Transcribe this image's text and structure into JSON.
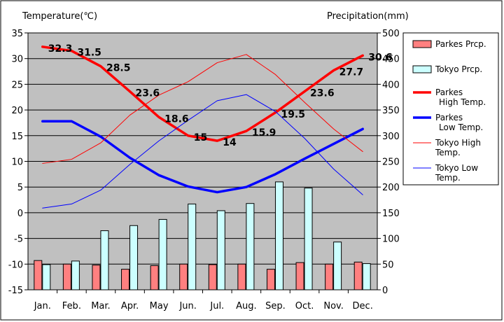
{
  "chart_data": {
    "type": "bar+line",
    "title_left": "Temperature(℃)",
    "title_right": "Precipitation(mm)",
    "categories": [
      "Jan.",
      "Feb.",
      "Mar.",
      "Apr.",
      "May",
      "Jun.",
      "Jul.",
      "Aug.",
      "Sep.",
      "Oct.",
      "Nov.",
      "Dec."
    ],
    "ylim_left": [
      -15,
      35
    ],
    "yticks_left": [
      "35",
      "30",
      "25",
      "20",
      "15",
      "10",
      "5",
      "0",
      "-5",
      "-10",
      "-15"
    ],
    "ylim_right": [
      0,
      500
    ],
    "yticks_right": [
      "500",
      "450",
      "400",
      "350",
      "300",
      "250",
      "200",
      "150",
      "100",
      "50",
      "0"
    ],
    "bar_series": [
      {
        "name": "Parkes Prcp.",
        "color": "#ff8080",
        "values": [
          57,
          50,
          48,
          40,
          47,
          50,
          49,
          50,
          40,
          53,
          50,
          54
        ]
      },
      {
        "name": "Tokyo Prcp.",
        "color": "#ccffff",
        "values": [
          49,
          56,
          115,
          125,
          137,
          167,
          154,
          168,
          210,
          198,
          93,
          51
        ]
      }
    ],
    "line_series": [
      {
        "name": "Parkes High Temp.",
        "legend_lines": [
          "Parkes",
          "High Temp."
        ],
        "color": "#ff0000",
        "width": "thick",
        "values": [
          32.3,
          31.5,
          28.5,
          23.6,
          18.6,
          15,
          14,
          15.9,
          19.5,
          23.6,
          27.7,
          30.6
        ],
        "labels": [
          "32.3",
          "31.5",
          "28.5",
          "23.6",
          "18.6",
          "15",
          "14",
          "15.9",
          "19.5",
          "23.6",
          "27.7",
          "30.6"
        ]
      },
      {
        "name": "Parkes Low Temp.",
        "legend_lines": [
          "Parkes",
          "Low Temp."
        ],
        "color": "#0000ff",
        "width": "thick",
        "values": [
          17.8,
          17.8,
          14.8,
          10.7,
          7.3,
          5.1,
          4,
          5,
          7.5,
          10.5,
          13.4,
          16.3
        ]
      },
      {
        "name": "Tokyo High Temp.",
        "legend_lines": [
          "Tokyo High",
          "Temp."
        ],
        "color": "#ff0000",
        "width": "thin",
        "values": [
          9.6,
          10.4,
          13.6,
          19,
          22.9,
          25.5,
          29.2,
          30.8,
          26.9,
          21.5,
          16.3,
          11.9
        ]
      },
      {
        "name": "Tokyo Low Temp.",
        "legend_lines": [
          "Tokyo Low",
          "Temp."
        ],
        "color": "#0000ff",
        "width": "thin",
        "values": [
          0.9,
          1.7,
          4.4,
          9.4,
          14,
          18,
          21.8,
          23,
          19.7,
          14.5,
          8.5,
          3.5
        ]
      }
    ]
  }
}
